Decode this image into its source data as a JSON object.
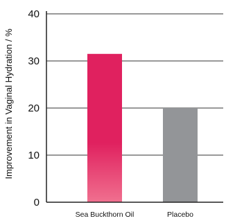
{
  "chart_data": {
    "type": "bar",
    "title": "",
    "xlabel": "",
    "ylabel": "Improvement in Vaginal Hydration / %",
    "ylim": [
      0,
      40
    ],
    "yticks": [
      0,
      10,
      20,
      30,
      40
    ],
    "grid": true,
    "categories": [
      "Sea Buckthorn Oil",
      "Placebo"
    ],
    "values": [
      31.5,
      20
    ],
    "colors": {
      "bar_1_top": "#e0215f",
      "bar_1_bottom": "#f0708f",
      "bar_2": "#939598",
      "axis": "#222222",
      "grid": "#333333"
    }
  }
}
